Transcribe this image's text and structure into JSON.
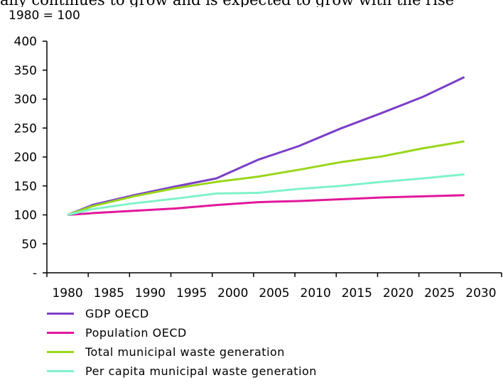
{
  "caption_fragment": "ally continues to grow and is expected to grow with the rise",
  "chart_data": {
    "type": "line",
    "ylabel": "1980 = 100",
    "ylim": [
      0,
      400
    ],
    "yticks": [
      0,
      50,
      100,
      150,
      200,
      250,
      300,
      350,
      400
    ],
    "ytick_labels": [
      "-",
      "50",
      "100",
      "150",
      "200",
      "250",
      "300",
      "350",
      "400"
    ],
    "categories": [
      "1980",
      "1985",
      "1990",
      "1995",
      "2000",
      "2005",
      "2010",
      "2015",
      "2020",
      "2025",
      "2030"
    ],
    "x": [
      1980,
      1983,
      1988,
      1993,
      1998,
      2003,
      2008,
      2013,
      2018,
      2023,
      2028
    ],
    "series": [
      {
        "name": "GDP OECD",
        "color": "#7b3fc8",
        "values": [
          100,
          117,
          134,
          149,
          163,
          195,
          219,
          249,
          276,
          304,
          338
        ]
      },
      {
        "name": "Population OECD",
        "color": "#e0189a",
        "values": [
          100,
          103,
          107,
          111,
          117,
          122,
          124,
          127,
          130,
          132,
          134
        ]
      },
      {
        "name": "Total municipal waste generation",
        "color": "#9ad61a",
        "values": [
          100,
          115,
          132,
          146,
          157,
          166,
          178,
          191,
          201,
          215,
          227
        ]
      },
      {
        "name": "Per capita municipal waste generation",
        "color": "#7ff3c8",
        "values": [
          100,
          110,
          120,
          128,
          137,
          138,
          145,
          150,
          157,
          163,
          170
        ]
      }
    ],
    "grid": false,
    "legend_position": "bottom"
  }
}
